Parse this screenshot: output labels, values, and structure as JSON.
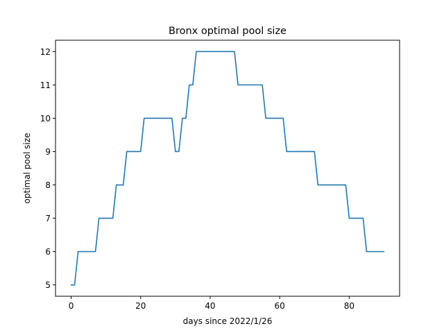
{
  "chart_data": {
    "type": "line",
    "title": "Bronx optimal pool size",
    "xlabel": "days since 2022/1/26",
    "ylabel": "optimal pool size",
    "xlim": [
      -4.5,
      94.5
    ],
    "ylim": [
      4.66,
      12.34
    ],
    "x_ticks": [
      0,
      20,
      40,
      60,
      80
    ],
    "y_ticks": [
      5,
      6,
      7,
      8,
      9,
      10,
      11,
      12
    ],
    "grid": false,
    "color": "#1f77b4",
    "series": [
      {
        "x": [
          0,
          1,
          2,
          3,
          4,
          5,
          6,
          7,
          8,
          9,
          10,
          11,
          12,
          13,
          14,
          15,
          16,
          17,
          18,
          19,
          20,
          21,
          22,
          23,
          24,
          25,
          26,
          27,
          28,
          29,
          30,
          31,
          32,
          33,
          34,
          35,
          36,
          37,
          38,
          39,
          40,
          41,
          42,
          43,
          44,
          45,
          46,
          47,
          48,
          49,
          50,
          51,
          52,
          53,
          54,
          55,
          56,
          57,
          58,
          59,
          60,
          61,
          62,
          63,
          64,
          65,
          66,
          67,
          68,
          69,
          70,
          71,
          72,
          73,
          74,
          75,
          76,
          77,
          78,
          79,
          80,
          81,
          82,
          83,
          84,
          85,
          86,
          87,
          88,
          89,
          90
        ],
        "y": [
          5,
          5,
          6,
          6,
          6,
          6,
          6,
          6,
          7,
          7,
          7,
          7,
          7,
          8,
          8,
          8,
          9,
          9,
          9,
          9,
          9,
          10,
          10,
          10,
          10,
          10,
          10,
          10,
          10,
          10,
          9,
          9,
          10,
          10,
          11,
          11,
          12,
          12,
          12,
          12,
          12,
          12,
          12,
          12,
          12,
          12,
          12,
          12,
          11,
          11,
          11,
          11,
          11,
          11,
          11,
          11,
          10,
          10,
          10,
          10,
          10,
          10,
          9,
          9,
          9,
          9,
          9,
          9,
          9,
          9,
          9,
          8,
          8,
          8,
          8,
          8,
          8,
          8,
          8,
          8,
          7,
          7,
          7,
          7,
          7,
          6,
          6,
          6,
          6,
          6,
          6
        ]
      }
    ]
  }
}
